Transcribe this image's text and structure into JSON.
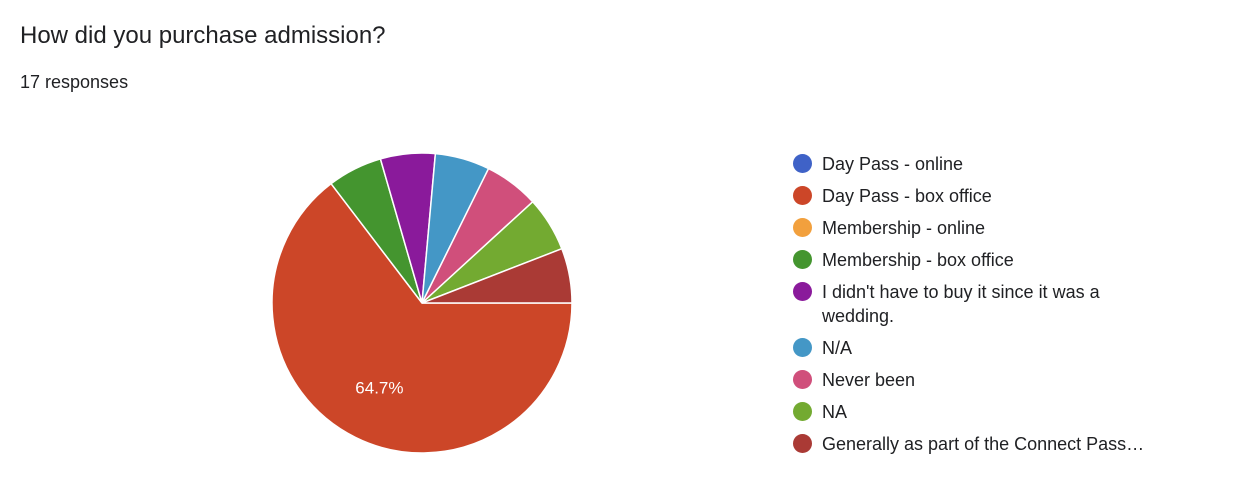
{
  "chart_data": {
    "type": "pie",
    "title": "How did you purchase admission?",
    "subtitle": "17 responses",
    "categories": [
      "Day Pass - online",
      "Day Pass - box office",
      "Membership - online",
      "Membership - box office",
      "I didn't have to buy it since it was a wedding.",
      "N/A",
      "Never been",
      "NA",
      "Generally as part of the Connect Pass…"
    ],
    "values": [
      0,
      64.7,
      0,
      5.9,
      5.9,
      5.9,
      5.9,
      5.9,
      5.9
    ],
    "value_labels": [
      null,
      "64.7%",
      null,
      null,
      null,
      null,
      null,
      null,
      null
    ],
    "colors": [
      "#3f62c7",
      "#cc4628",
      "#f2a03d",
      "#44952f",
      "#8a1a9b",
      "#4497c6",
      "#d04f7b",
      "#73aa31",
      "#aa3a35"
    ],
    "legend": "right"
  }
}
